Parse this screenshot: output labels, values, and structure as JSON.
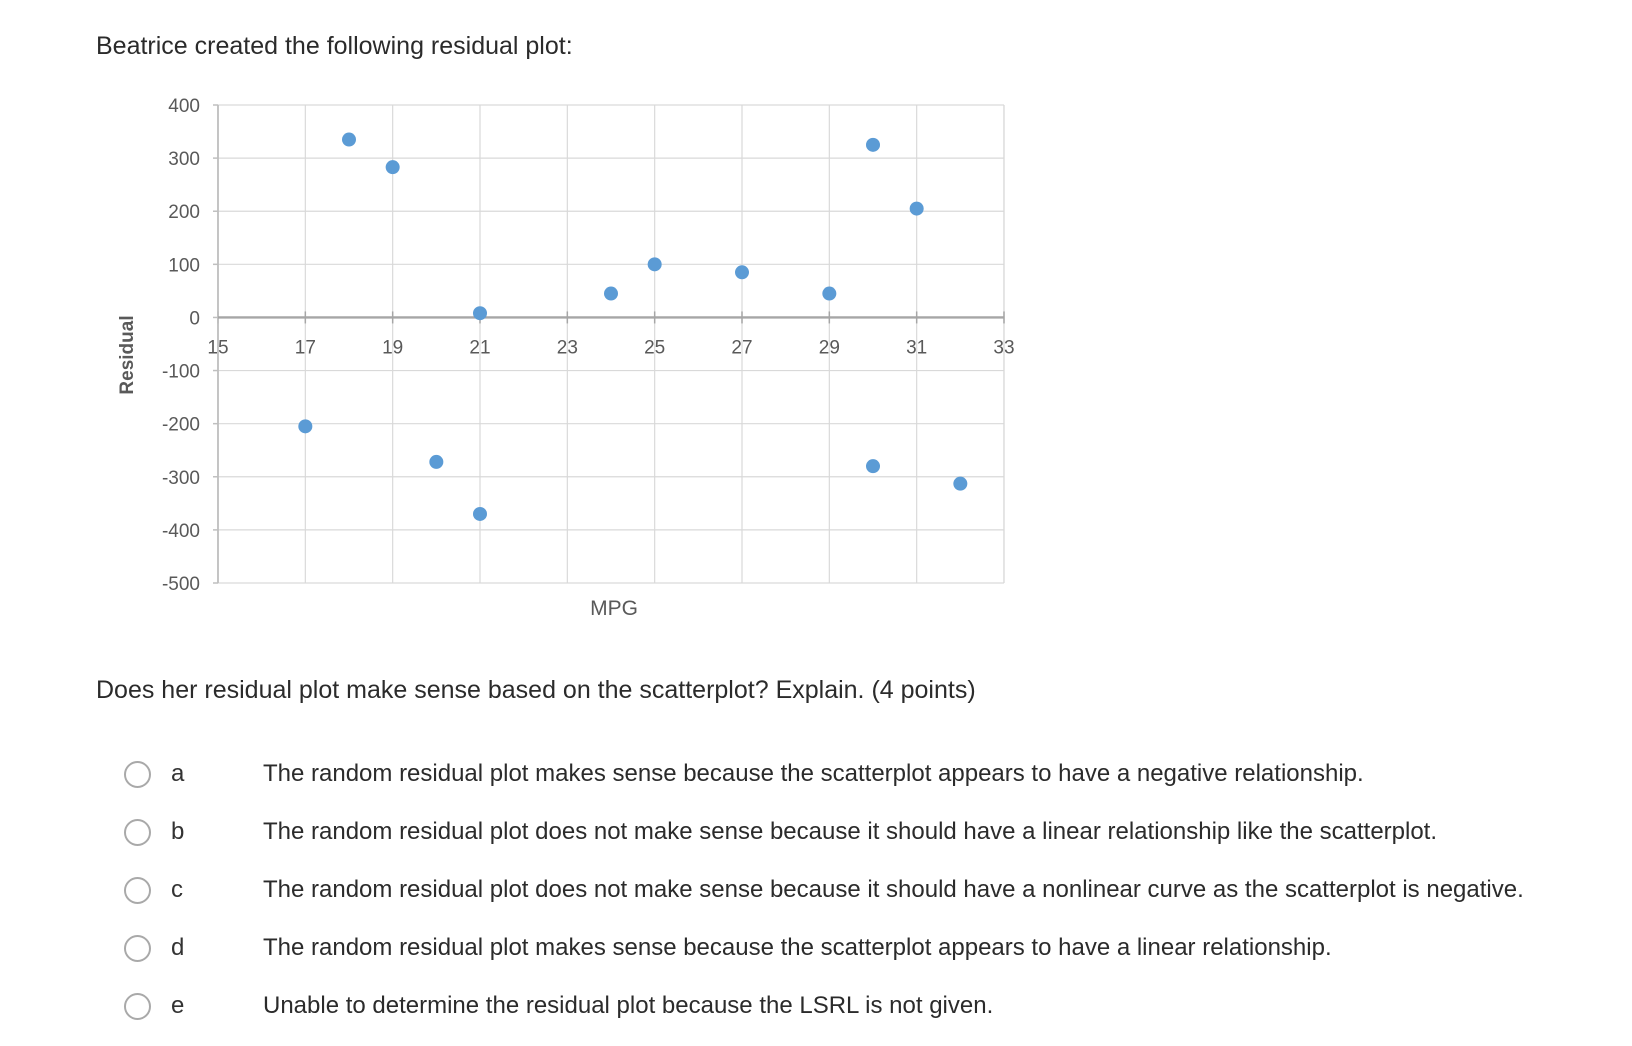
{
  "intro": "Beatrice created the following residual plot:",
  "question": "Does her residual plot make sense based on the scatterplot? Explain. (4 points)",
  "colors": {
    "point": "#5b9bd5",
    "grid": "#d9d9d9",
    "axis": "#bfbfbf",
    "text": "#595959"
  },
  "chart_data": {
    "type": "scatter",
    "title": "",
    "xlabel": "MPG",
    "ylabel": "Residual",
    "xlim": [
      15,
      33
    ],
    "ylim": [
      -500,
      400
    ],
    "x_ticks": [
      15,
      17,
      19,
      21,
      23,
      25,
      27,
      29,
      31,
      33
    ],
    "y_ticks": [
      400,
      300,
      200,
      100,
      0,
      -100,
      -200,
      -300,
      -400,
      -500
    ],
    "grid": true,
    "legend": "none",
    "points": [
      {
        "x": 17,
        "y": -205
      },
      {
        "x": 18,
        "y": 335
      },
      {
        "x": 19,
        "y": 283
      },
      {
        "x": 20,
        "y": -272
      },
      {
        "x": 21,
        "y": 8
      },
      {
        "x": 21,
        "y": -370
      },
      {
        "x": 24,
        "y": 45
      },
      {
        "x": 25,
        "y": 100
      },
      {
        "x": 27,
        "y": 85
      },
      {
        "x": 29,
        "y": 45
      },
      {
        "x": 30,
        "y": 325
      },
      {
        "x": 30,
        "y": -280
      },
      {
        "x": 31,
        "y": 205
      },
      {
        "x": 32,
        "y": -313
      }
    ]
  },
  "options": [
    {
      "letter": "a",
      "text": "The random residual plot makes sense because the scatterplot appears to have a negative relationship."
    },
    {
      "letter": "b",
      "text": "The random residual plot does not make sense because it should have a linear relationship like the scatterplot."
    },
    {
      "letter": "c",
      "text": "The random residual plot does not make sense because it should have a nonlinear curve as the scatterplot is negative."
    },
    {
      "letter": "d",
      "text": "The random residual plot makes sense because the scatterplot appears to have a linear relationship."
    },
    {
      "letter": "e",
      "text": "Unable to determine the residual plot because the LSRL is not given."
    }
  ]
}
